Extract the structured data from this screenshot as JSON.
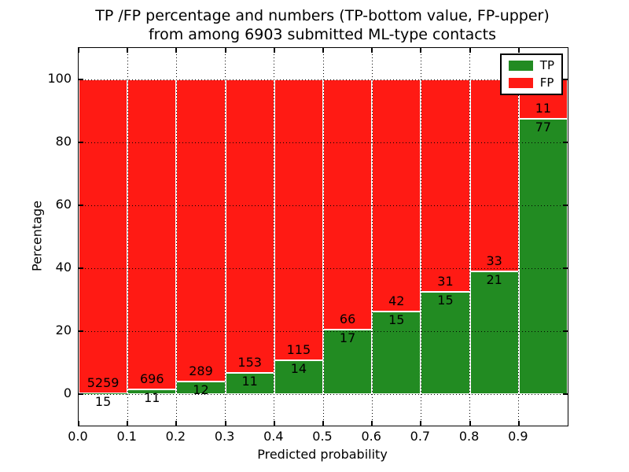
{
  "chart_data": {
    "type": "bar",
    "stacked": true,
    "normalization": "each bar scaled to 100%; labels show raw counts (TP bottom value, FP upper)",
    "title": "TP /FP percentage and numbers (TP-bottom value, FP-upper) from among 6903 submitted ML-type contacts",
    "title_line1": "TP /FP percentage and numbers (TP-bottom value, FP-upper)",
    "title_line2": "from among 6903 submitted ML-type contacts",
    "xlabel": "Predicted probability",
    "ylabel": "Percentage",
    "total_contacts": 6903,
    "bin_starts": [
      0.0,
      0.1,
      0.2,
      0.3,
      0.4,
      0.5,
      0.6,
      0.7,
      0.8,
      0.9
    ],
    "bar_width": 0.1,
    "xlim": [
      0.0,
      1.0
    ],
    "ylim": [
      -10,
      110
    ],
    "x_tick_labels": [
      "0.0",
      "0.1",
      "0.2",
      "0.3",
      "0.4",
      "0.5",
      "0.6",
      "0.7",
      "0.8",
      "0.9"
    ],
    "y_ticks": [
      0,
      20,
      40,
      60,
      80,
      100
    ],
    "grid_style": "dotted",
    "series": [
      {
        "name": "TP",
        "color": "#228B22",
        "counts": [
          15,
          11,
          12,
          11,
          14,
          17,
          15,
          15,
          21,
          77
        ]
      },
      {
        "name": "FP",
        "color": "#FF1A14",
        "counts": [
          5259,
          696,
          289,
          153,
          115,
          66,
          42,
          31,
          33,
          11
        ]
      }
    ],
    "legend": {
      "position": "upper right",
      "entries": [
        "TP",
        "FP"
      ]
    }
  }
}
